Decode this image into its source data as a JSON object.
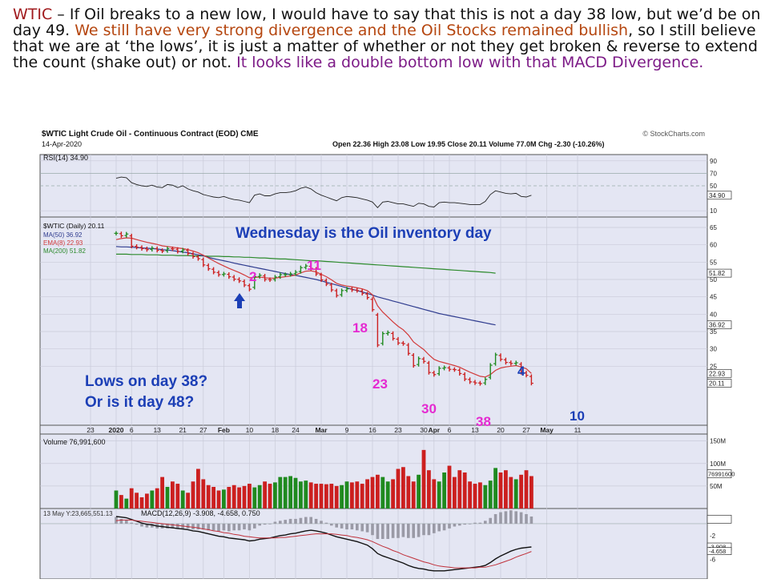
{
  "commentary": {
    "ticker": "WTIC",
    "t1": " – If Oil breaks to a new low, I would have to say that this is not a day 38 low, but we’d be on day 49.  ",
    "t2": "We still have very strong divergence and the Oil Stocks remained bullish",
    "t3": ", so I still believe that we are at ‘the lows’, it is just a matter of whether or not they get broken & reverse to extend the count (shake out) or not. ",
    "t4": "It looks like a double bottom low with that MACD Divergence."
  },
  "colors": {
    "ticker": "#a0191c",
    "orange_text": "#b5460f",
    "purple_text": "#7d1b87",
    "up": "#1f8a1f",
    "down": "#cc1f1f",
    "annot_blue": "#1c3fb6",
    "annot_pink": "#e52ad1",
    "ma50": "#2f3c8f",
    "ema8": "#d23a3a",
    "ma200": "#2c8a2c",
    "panel_bg": "#e4e6f3"
  },
  "header": {
    "title": "$WTIC Light Crude Oil - Continuous Contract (EOD) CME",
    "date": "14-Apr-2020",
    "watermark": "© StockCharts.com",
    "ohlc": "Open 22.36  High 23.08  Low 19.95  Close 20.11  Volume 77.0M  Chg -2.30 (-10.26%)"
  },
  "annotations": {
    "wednesday": "Wednesday is the Oil inventory day",
    "lows_q1": "Lows on day 38?",
    "lows_q2": "Or is it day 48?",
    "days": [
      "2",
      "11",
      "18",
      "23",
      "30",
      "38",
      "4",
      "10"
    ]
  },
  "chart_data": {
    "type": "candlestick",
    "symbol": "$WTIC",
    "date": "14-Apr-2020",
    "ohlc_last": {
      "open": 22.36,
      "high": 23.08,
      "low": 19.95,
      "close": 20.11,
      "volume": "77.0M",
      "change": -2.3,
      "change_pct": -10.26
    },
    "price_ylim": [
      8,
      68
    ],
    "price_ticks": [
      "65",
      "60",
      "55",
      "50",
      "45",
      "40",
      "35",
      "30",
      "25"
    ],
    "price_labels": [
      {
        "text": "51.82",
        "value": 51.82
      },
      {
        "text": "36.92",
        "value": 36.92
      },
      {
        "text": "22.93",
        "value": 22.93
      },
      {
        "text": "20.11",
        "value": 20.11
      }
    ],
    "x_ticks": [
      {
        "label": "23",
        "index": -5
      },
      {
        "label": "2020",
        "index": 0
      },
      {
        "label": "6",
        "index": 3
      },
      {
        "label": "13",
        "index": 8
      },
      {
        "label": "21",
        "index": 13
      },
      {
        "label": "27",
        "index": 17
      },
      {
        "label": "Feb",
        "index": 21
      },
      {
        "label": "10",
        "index": 26
      },
      {
        "label": "18",
        "index": 31
      },
      {
        "label": "24",
        "index": 35
      },
      {
        "label": "Mar",
        "index": 40
      },
      {
        "label": "9",
        "index": 45
      },
      {
        "label": "16",
        "index": 50
      },
      {
        "label": "23",
        "index": 55
      },
      {
        "label": "30",
        "index": 60
      },
      {
        "label": "Apr",
        "index": 62
      },
      {
        "label": "6",
        "index": 65
      },
      {
        "label": "13",
        "index": 70
      },
      {
        "label": "20",
        "index": 75
      },
      {
        "label": "27",
        "index": 80
      },
      {
        "label": "May",
        "index": 84
      },
      {
        "label": "11",
        "index": 90
      }
    ],
    "closes": [
      63.3,
      62.6,
      63.1,
      59.6,
      59.3,
      58.9,
      58.6,
      59.0,
      58.4,
      58.2,
      58.9,
      58.8,
      58.1,
      58.5,
      57.5,
      56.6,
      56.0,
      54.2,
      53.1,
      52.1,
      51.4,
      51.6,
      50.8,
      50.1,
      49.6,
      48.4,
      47.2,
      50.8,
      51.2,
      50.0,
      49.9,
      50.7,
      51.4,
      51.4,
      51.6,
      52.1,
      53.4,
      53.9,
      53.2,
      51.6,
      49.9,
      48.7,
      47.0,
      45.4,
      46.8,
      47.3,
      47.0,
      46.8,
      46.0,
      44.8,
      41.3,
      31.1,
      34.4,
      34.7,
      33.0,
      31.7,
      31.5,
      28.7,
      25.2,
      27.2,
      26.4,
      23.2,
      22.6,
      24.4,
      24.6,
      24.1,
      24.0,
      22.9,
      21.3,
      20.5,
      20.2,
      20.0,
      21.2,
      25.3,
      28.3,
      27.0,
      26.1,
      25.8,
      26.0,
      23.2,
      22.4,
      20.1
    ],
    "ma50": [
      59.5,
      59.4,
      59.4,
      59.3,
      59.2,
      59.1,
      59.0,
      58.9,
      58.8,
      58.6,
      58.5,
      58.3,
      58.1,
      57.9,
      57.7,
      57.4,
      57.1,
      56.8,
      56.4,
      56.0,
      55.7,
      55.4,
      55.1,
      54.7,
      54.4,
      54.1,
      53.8,
      53.5,
      53.2,
      52.9,
      52.6,
      52.3,
      52.0,
      51.7,
      51.4,
      51.2,
      50.9,
      50.6,
      50.3,
      50.0,
      49.6,
      49.2,
      48.8,
      48.4,
      48.0,
      47.6,
      47.2,
      46.8,
      46.4,
      46.0,
      45.5,
      45.0,
      44.6,
      44.2,
      43.8,
      43.4,
      43.0,
      42.6,
      42.2,
      41.8,
      41.4,
      41.0,
      40.6,
      40.2,
      39.9,
      39.6,
      39.3,
      39.0,
      38.7,
      38.4,
      38.1,
      37.8,
      37.5,
      37.2,
      36.92
    ],
    "ema8": [
      61.5,
      61.8,
      62.0,
      61.9,
      61.5,
      61.1,
      60.7,
      60.4,
      60.1,
      59.7,
      59.5,
      59.3,
      59.1,
      58.9,
      58.6,
      58.2,
      57.7,
      57.0,
      56.2,
      55.4,
      54.6,
      53.9,
      53.2,
      52.6,
      52.0,
      51.3,
      50.5,
      50.6,
      50.7,
      50.5,
      50.4,
      50.4,
      50.6,
      50.8,
      51.0,
      51.3,
      51.9,
      52.4,
      52.5,
      52.2,
      51.5,
      50.8,
      49.9,
      48.9,
      48.4,
      48.1,
      47.9,
      47.6,
      47.3,
      46.8,
      45.6,
      42.4,
      40.6,
      39.2,
      37.8,
      36.5,
      35.5,
      34.0,
      32.0,
      30.9,
      29.8,
      28.3,
      27.0,
      26.4,
      26.0,
      25.6,
      25.2,
      24.7,
      24.0,
      23.3,
      22.7,
      22.1,
      21.9,
      22.6,
      23.8,
      24.5,
      24.8,
      25.0,
      25.2,
      24.8,
      24.3,
      22.93
    ],
    "ma200": [
      57.3,
      57.3,
      57.3,
      57.2,
      57.2,
      57.2,
      57.1,
      57.1,
      57.1,
      57.0,
      57.0,
      57.0,
      56.9,
      56.9,
      56.9,
      56.8,
      56.8,
      56.8,
      56.7,
      56.7,
      56.7,
      56.6,
      56.6,
      56.5,
      56.5,
      56.4,
      56.4,
      56.3,
      56.2,
      56.2,
      56.1,
      56.0,
      55.9,
      55.9,
      55.8,
      55.7,
      55.6,
      55.5,
      55.4,
      55.4,
      55.3,
      55.2,
      55.1,
      55.0,
      54.9,
      54.8,
      54.7,
      54.6,
      54.5,
      54.4,
      54.3,
      54.2,
      54.1,
      54.0,
      53.9,
      53.8,
      53.7,
      53.6,
      53.5,
      53.4,
      53.3,
      53.2,
      53.1,
      53.0,
      52.9,
      52.8,
      52.7,
      52.6,
      52.5,
      52.4,
      52.3,
      52.2,
      52.1,
      52.0,
      51.82
    ],
    "rsi": {
      "label": "RSI(14) 34.90",
      "ylim": [
        0,
        100
      ],
      "ticks": [
        "90",
        "70",
        "50",
        "10"
      ],
      "last": "34.90",
      "values": [
        62,
        64,
        63,
        55,
        52,
        50,
        49,
        51,
        48,
        47,
        52,
        51,
        47,
        50,
        45,
        42,
        40,
        36,
        34,
        32,
        31,
        33,
        30,
        28,
        27,
        25,
        23,
        35,
        37,
        34,
        34,
        37,
        39,
        39,
        40,
        42,
        46,
        48,
        45,
        39,
        35,
        32,
        29,
        26,
        31,
        33,
        32,
        31,
        29,
        27,
        24,
        15,
        24,
        25,
        23,
        21,
        21,
        19,
        17,
        22,
        21,
        17,
        16,
        23,
        24,
        23,
        23,
        22,
        21,
        20,
        20,
        20,
        25,
        36,
        42,
        40,
        38,
        37,
        38,
        33,
        32,
        34.9
      ]
    },
    "volume": {
      "label": "Volume 76,991,600",
      "ticks": [
        "150M",
        "100M",
        "50M"
      ],
      "last": "76991600",
      "values": [
        40,
        30,
        22,
        45,
        35,
        25,
        33,
        40,
        45,
        70,
        48,
        60,
        55,
        40,
        35,
        60,
        88,
        65,
        52,
        48,
        40,
        42,
        48,
        52,
        47,
        50,
        55,
        47,
        52,
        60,
        55,
        58,
        70,
        70,
        72,
        68,
        60,
        62,
        58,
        55,
        55,
        54,
        55,
        50,
        52,
        60,
        58,
        60,
        55,
        65,
        70,
        75,
        70,
        60,
        65,
        88,
        92,
        72,
        60,
        75,
        130,
        85,
        65,
        60,
        80,
        95,
        70,
        85,
        80,
        60,
        55,
        58,
        52,
        62,
        90,
        80,
        85,
        70,
        65,
        75,
        85,
        72
      ]
    },
    "macd": {
      "label": "MACD(12,26,9) -3.908, -4.658, 0.750",
      "overlay": "13 May Y:23,665,551.13",
      "ticks": [
        "0.750",
        "-2",
        "-3.908",
        "-4.658",
        "-6"
      ],
      "macd": [
        1.2,
        1.1,
        1.0,
        0.7,
        0.4,
        0.1,
        -0.1,
        -0.2,
        -0.4,
        -0.5,
        -0.6,
        -0.7,
        -0.8,
        -0.9,
        -1.0,
        -1.2,
        -1.3,
        -1.5,
        -1.7,
        -1.9,
        -2.1,
        -2.2,
        -2.4,
        -2.5,
        -2.6,
        -2.7,
        -2.9,
        -2.8,
        -2.6,
        -2.5,
        -2.4,
        -2.2,
        -2.0,
        -1.9,
        -1.7,
        -1.6,
        -1.4,
        -1.2,
        -1.1,
        -1.2,
        -1.4,
        -1.6,
        -1.9,
        -2.2,
        -2.4,
        -2.6,
        -2.8,
        -3.0,
        -3.3,
        -3.6,
        -4.2,
        -5.0,
        -5.4,
        -5.7,
        -6.0,
        -6.3,
        -6.6,
        -7.0,
        -7.3,
        -7.5,
        -7.6,
        -7.8,
        -7.9,
        -7.9,
        -7.9,
        -7.8,
        -7.7,
        -7.6,
        -7.5,
        -7.4,
        -7.3,
        -7.2,
        -7.0,
        -6.5,
        -5.9,
        -5.4,
        -5.0,
        -4.6,
        -4.3,
        -4.1,
        -4.0,
        -3.908
      ],
      "signal": [
        0.5,
        0.6,
        0.6,
        0.6,
        0.5,
        0.4,
        0.3,
        0.2,
        0.1,
        0.0,
        -0.1,
        -0.2,
        -0.3,
        -0.4,
        -0.5,
        -0.6,
        -0.7,
        -0.9,
        -1.0,
        -1.2,
        -1.3,
        -1.5,
        -1.6,
        -1.8,
        -1.9,
        -2.1,
        -2.2,
        -2.3,
        -2.4,
        -2.4,
        -2.4,
        -2.4,
        -2.3,
        -2.3,
        -2.2,
        -2.1,
        -2.0,
        -1.9,
        -1.8,
        -1.7,
        -1.7,
        -1.7,
        -1.7,
        -1.8,
        -1.9,
        -2.0,
        -2.2,
        -2.3,
        -2.5,
        -2.7,
        -3.0,
        -3.4,
        -3.8,
        -4.1,
        -4.5,
        -4.8,
        -5.2,
        -5.5,
        -5.8,
        -6.1,
        -6.4,
        -6.6,
        -6.9,
        -7.1,
        -7.2,
        -7.3,
        -7.4,
        -7.4,
        -7.4,
        -7.4,
        -7.4,
        -7.3,
        -7.3,
        -7.1,
        -6.9,
        -6.6,
        -6.3,
        -6.0,
        -5.6,
        -5.3,
        -5.0,
        -4.658
      ],
      "hist": [
        0.7,
        0.5,
        0.4,
        0.1,
        -0.1,
        -0.3,
        -0.4,
        -0.4,
        -0.5,
        -0.5,
        -0.5,
        -0.5,
        -0.5,
        -0.5,
        -0.5,
        -0.6,
        -0.6,
        -0.6,
        -0.7,
        -0.7,
        -0.8,
        -0.7,
        -0.8,
        -0.7,
        -0.7,
        -0.6,
        -0.7,
        -0.5,
        -0.2,
        -0.1,
        0.0,
        0.2,
        0.3,
        0.4,
        0.5,
        0.5,
        0.6,
        0.7,
        0.7,
        0.5,
        0.3,
        0.1,
        -0.2,
        -0.4,
        -0.5,
        -0.6,
        -0.6,
        -0.7,
        -0.8,
        -0.9,
        -1.2,
        -1.6,
        -1.6,
        -1.6,
        -1.5,
        -1.5,
        -1.4,
        -1.5,
        -1.5,
        -1.4,
        -1.2,
        -1.2,
        -1.0,
        -0.8,
        -0.7,
        -0.5,
        -0.3,
        -0.2,
        -0.1,
        0.0,
        0.1,
        0.1,
        0.3,
        0.6,
        1.0,
        1.2,
        1.3,
        1.4,
        1.3,
        1.2,
        1.0,
        0.75
      ]
    },
    "legend": [
      {
        "text": "$WTIC (Daily) 20.11"
      },
      {
        "text": "MA(50) 36.92",
        "color": "#2f3c8f"
      },
      {
        "text": "EMA(8) 22.93",
        "color": "#d23a3a"
      },
      {
        "text": "MA(200) 51.82",
        "color": "#2c8a2c"
      }
    ]
  }
}
